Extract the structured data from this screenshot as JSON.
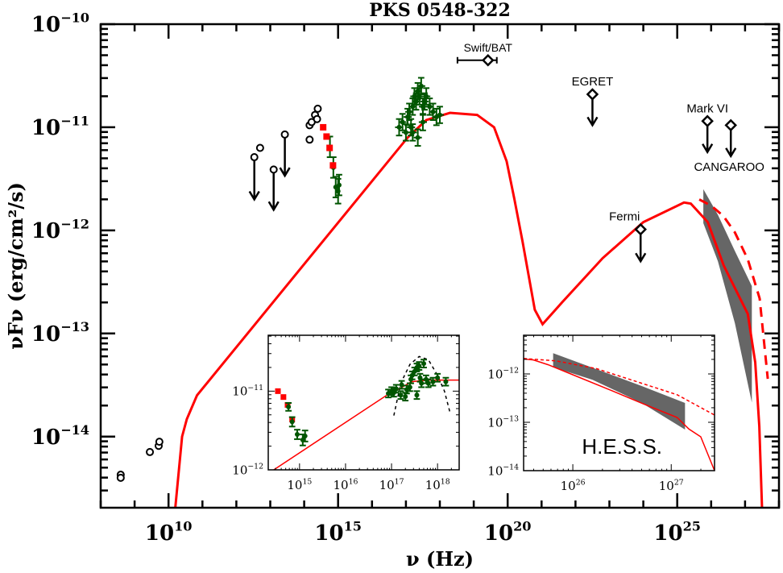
{
  "chart_data": {
    "type": "scatter",
    "title": "PKS 0548-322",
    "xlabel": "ν (Hz)",
    "ylabel": "νFν (erg/cm²/s)",
    "xscale": "log",
    "yscale": "log",
    "xlim_log10": [
      8,
      28
    ],
    "ylim_log10": [
      -14.69,
      -10
    ],
    "xticks": [
      {
        "base": "10",
        "exp": "10",
        "v": 10
      },
      {
        "base": "10",
        "exp": "15",
        "v": 15
      },
      {
        "base": "10",
        "exp": "20",
        "v": 20
      },
      {
        "base": "10",
        "exp": "25",
        "v": 25
      }
    ],
    "yticks": [
      {
        "base": "10",
        "exp": "−10",
        "v": -10
      },
      {
        "base": "10",
        "exp": "−11",
        "v": -11
      },
      {
        "base": "10",
        "exp": "−12",
        "v": -12
      },
      {
        "base": "10",
        "exp": "−13",
        "v": -13
      },
      {
        "base": "10",
        "exp": "−14",
        "v": -14
      }
    ],
    "colors": {
      "model": "#ff0000",
      "optical": "#ff0000",
      "data": "#005500",
      "band": "#666666",
      "ul": "#000000"
    },
    "model_solid": [
      [
        10.2,
        -14.69
      ],
      [
        10.4,
        -14.0
      ],
      [
        10.54,
        -13.83
      ],
      [
        10.84,
        -13.6
      ],
      [
        17.05,
        -11.1
      ],
      [
        17.6,
        -10.93
      ],
      [
        18.3,
        -10.86
      ],
      [
        19.1,
        -10.88
      ],
      [
        19.6,
        -11.0
      ],
      [
        19.97,
        -11.33
      ],
      [
        20.2,
        -11.7
      ],
      [
        20.44,
        -12.11
      ],
      [
        20.8,
        -12.77
      ],
      [
        21.03,
        -12.91
      ],
      [
        21.6,
        -12.7
      ],
      [
        22.8,
        -12.27
      ],
      [
        24.0,
        -11.92
      ],
      [
        25.2,
        -11.73
      ],
      [
        25.4,
        -11.74
      ],
      [
        25.9,
        -11.92
      ],
      [
        26.37,
        -12.34
      ],
      [
        27.08,
        -12.81
      ],
      [
        27.3,
        -13.28
      ],
      [
        27.42,
        -13.9
      ],
      [
        27.5,
        -14.69
      ]
    ],
    "model_dashed": [
      [
        25.65,
        -11.7
      ],
      [
        26.0,
        -11.76
      ],
      [
        26.36,
        -11.86
      ],
      [
        26.7,
        -12.02
      ],
      [
        27.08,
        -12.28
      ],
      [
        27.43,
        -12.66
      ],
      [
        27.67,
        -13.44
      ]
    ],
    "hess_band": {
      "upper": [
        [
          25.77,
          -11.6
        ],
        [
          26.2,
          -11.85
        ],
        [
          26.7,
          -12.2
        ],
        [
          27.2,
          -12.54
        ]
      ],
      "lower": [
        [
          25.77,
          -11.93
        ],
        [
          26.2,
          -12.3
        ],
        [
          26.7,
          -12.9
        ],
        [
          27.2,
          -13.67
        ]
      ]
    },
    "radio_circles": [
      [
        8.59,
        -14.37
      ],
      [
        8.59,
        -14.4
      ],
      [
        9.45,
        -14.15
      ],
      [
        9.71,
        -14.09
      ],
      [
        9.73,
        -14.05
      ],
      [
        12.7,
        -11.2
      ],
      [
        14.16,
        -11.12
      ],
      [
        14.16,
        -10.98
      ],
      [
        14.22,
        -10.95
      ],
      [
        14.32,
        -10.88
      ],
      [
        14.4,
        -10.82
      ],
      [
        14.38,
        -10.92
      ]
    ],
    "radio_upper_limits": [
      [
        12.53,
        -11.29,
        -11.7
      ],
      [
        13.1,
        -11.41,
        -11.8
      ],
      [
        13.43,
        -11.07,
        -11.47
      ]
    ],
    "optical_squares": [
      [
        14.56,
        -11.0
      ],
      [
        14.66,
        -11.09
      ],
      [
        14.75,
        -11.2
      ],
      [
        14.85,
        -11.37
      ]
    ],
    "uv_points": [
      [
        14.76,
        -11.19,
        0.1
      ],
      [
        14.86,
        -11.39,
        0.1
      ],
      [
        14.93,
        -11.58,
        0.1
      ],
      [
        15.0,
        -11.62,
        0.12
      ],
      [
        15.03,
        -11.56,
        0.1
      ]
    ],
    "xray_points": [
      [
        16.8,
        -11.0
      ],
      [
        16.9,
        -10.95
      ],
      [
        17.0,
        -11.05
      ],
      [
        17.05,
        -10.9
      ],
      [
        17.1,
        -10.85
      ],
      [
        17.15,
        -11.0
      ],
      [
        17.2,
        -10.8
      ],
      [
        17.25,
        -10.7
      ],
      [
        17.3,
        -10.75
      ],
      [
        17.35,
        -10.65
      ],
      [
        17.4,
        -10.7
      ],
      [
        17.45,
        -10.6
      ],
      [
        17.5,
        -10.8
      ],
      [
        17.55,
        -10.75
      ],
      [
        17.6,
        -10.7
      ],
      [
        17.7,
        -10.8
      ],
      [
        17.8,
        -10.85
      ],
      [
        17.9,
        -10.9
      ],
      [
        18.0,
        -10.88
      ],
      [
        17.2,
        -11.05
      ],
      [
        17.35,
        -11.1
      ],
      [
        17.5,
        -10.95
      ]
    ],
    "swift_bat": {
      "label": "Swift/BAT",
      "x": 19.42,
      "y": -10.35,
      "xmin": 18.52,
      "xmax": 19.68,
      "yerr": 0.05
    },
    "upper_limit_diamonds": [
      {
        "label": "EGRET",
        "x": 22.5,
        "y": -10.68,
        "to": -10.98
      },
      {
        "label": "Fermi",
        "x": 23.92,
        "y": -11.99,
        "to": -12.3
      },
      {
        "label": "Mark VI",
        "x": 25.89,
        "y": -10.94,
        "to": -11.24
      },
      {
        "label": "CANGAROO",
        "x": 26.58,
        "y": -10.98,
        "to": -11.28
      }
    ],
    "inset_left": {
      "xlim_log10": [
        14.32,
        18.47
      ],
      "ylim_log10": [
        -12,
        -10.29
      ],
      "xticks": [
        {
          "base": "10",
          "exp": "15",
          "v": 15
        },
        {
          "base": "10",
          "exp": "16",
          "v": 16
        },
        {
          "base": "10",
          "exp": "17",
          "v": 17
        },
        {
          "base": "10",
          "exp": "18",
          "v": 18
        }
      ],
      "yticks": [
        {
          "base": "10",
          "exp": "−11",
          "v": -11
        },
        {
          "base": "10",
          "exp": "−12",
          "v": -12
        }
      ],
      "optical_squares": [
        [
          14.53,
          -11.0
        ],
        [
          14.65,
          -11.075
        ],
        [
          14.74,
          -11.175
        ],
        [
          14.84,
          -11.36
        ]
      ],
      "uv_points": [
        [
          14.76,
          -11.2,
          0.05
        ],
        [
          14.84,
          -11.39,
          0.06
        ],
        [
          14.95,
          -11.55,
          0.06
        ],
        [
          15.07,
          -11.62,
          0.07
        ],
        [
          15.12,
          -11.57,
          0.07
        ]
      ],
      "xray_points": [
        [
          16.93,
          -11.03
        ],
        [
          17.0,
          -11.0
        ],
        [
          17.05,
          -11.02
        ],
        [
          17.1,
          -10.97
        ],
        [
          17.2,
          -11.05
        ],
        [
          17.22,
          -10.92
        ],
        [
          17.3,
          -11.07
        ],
        [
          17.33,
          -10.98
        ],
        [
          17.4,
          -10.95
        ],
        [
          17.42,
          -10.85
        ],
        [
          17.45,
          -10.8
        ],
        [
          17.5,
          -10.75
        ],
        [
          17.55,
          -10.7
        ],
        [
          17.6,
          -10.68
        ],
        [
          17.62,
          -10.83
        ],
        [
          17.65,
          -10.9
        ],
        [
          17.7,
          -10.65
        ],
        [
          17.75,
          -10.85
        ],
        [
          17.8,
          -10.9
        ],
        [
          17.9,
          -10.88
        ],
        [
          18.0,
          -10.83
        ],
        [
          18.18,
          -10.88
        ],
        [
          17.55,
          -11.05
        ]
      ],
      "model": [
        [
          14.44,
          -12.0
        ],
        [
          16.9,
          -11.05
        ],
        [
          17.2,
          -10.96
        ],
        [
          17.43,
          -10.88
        ],
        [
          17.8,
          -10.86
        ],
        [
          18.47,
          -10.86
        ]
      ],
      "parabola": [
        [
          17.05,
          -11.31
        ],
        [
          17.2,
          -10.9
        ],
        [
          17.4,
          -10.66
        ],
        [
          17.6,
          -10.56
        ],
        [
          17.8,
          -10.6
        ],
        [
          18.0,
          -10.8
        ],
        [
          18.15,
          -11.0
        ],
        [
          18.27,
          -11.27
        ]
      ]
    },
    "inset_right": {
      "label": "H.E.S.S.",
      "xlim_log10": [
        25.5,
        27.44
      ],
      "ylim_log10": [
        -14,
        -11.2
      ],
      "xticks": [
        {
          "base": "10",
          "exp": "26",
          "v": 26
        },
        {
          "base": "10",
          "exp": "27",
          "v": 27
        }
      ],
      "yticks": [
        {
          "base": "10",
          "exp": "−12",
          "v": -12
        },
        {
          "base": "10",
          "exp": "−13",
          "v": -13
        },
        {
          "base": "10",
          "exp": "−14",
          "v": -14
        }
      ],
      "model": [
        [
          25.5,
          -11.69
        ],
        [
          25.6,
          -11.71
        ],
        [
          25.75,
          -11.81
        ],
        [
          25.98,
          -12.0
        ],
        [
          26.39,
          -12.34
        ],
        [
          26.73,
          -12.63
        ],
        [
          27.06,
          -12.9
        ],
        [
          27.18,
          -13.14
        ],
        [
          27.3,
          -13.3
        ],
        [
          27.44,
          -14.0
        ]
      ],
      "model_dashed": [
        [
          25.5,
          -11.68
        ],
        [
          25.83,
          -11.73
        ],
        [
          26.24,
          -11.89
        ],
        [
          26.65,
          -12.16
        ],
        [
          27.06,
          -12.43
        ],
        [
          27.44,
          -12.85
        ]
      ],
      "band": {
        "upper": [
          [
            25.8,
            -11.57
          ],
          [
            26.2,
            -11.87
          ],
          [
            26.7,
            -12.25
          ],
          [
            27.14,
            -12.6
          ]
        ],
        "lower": [
          [
            25.8,
            -11.86
          ],
          [
            26.2,
            -12.12
          ],
          [
            26.7,
            -12.6
          ],
          [
            27.14,
            -13.15
          ]
        ]
      }
    }
  }
}
